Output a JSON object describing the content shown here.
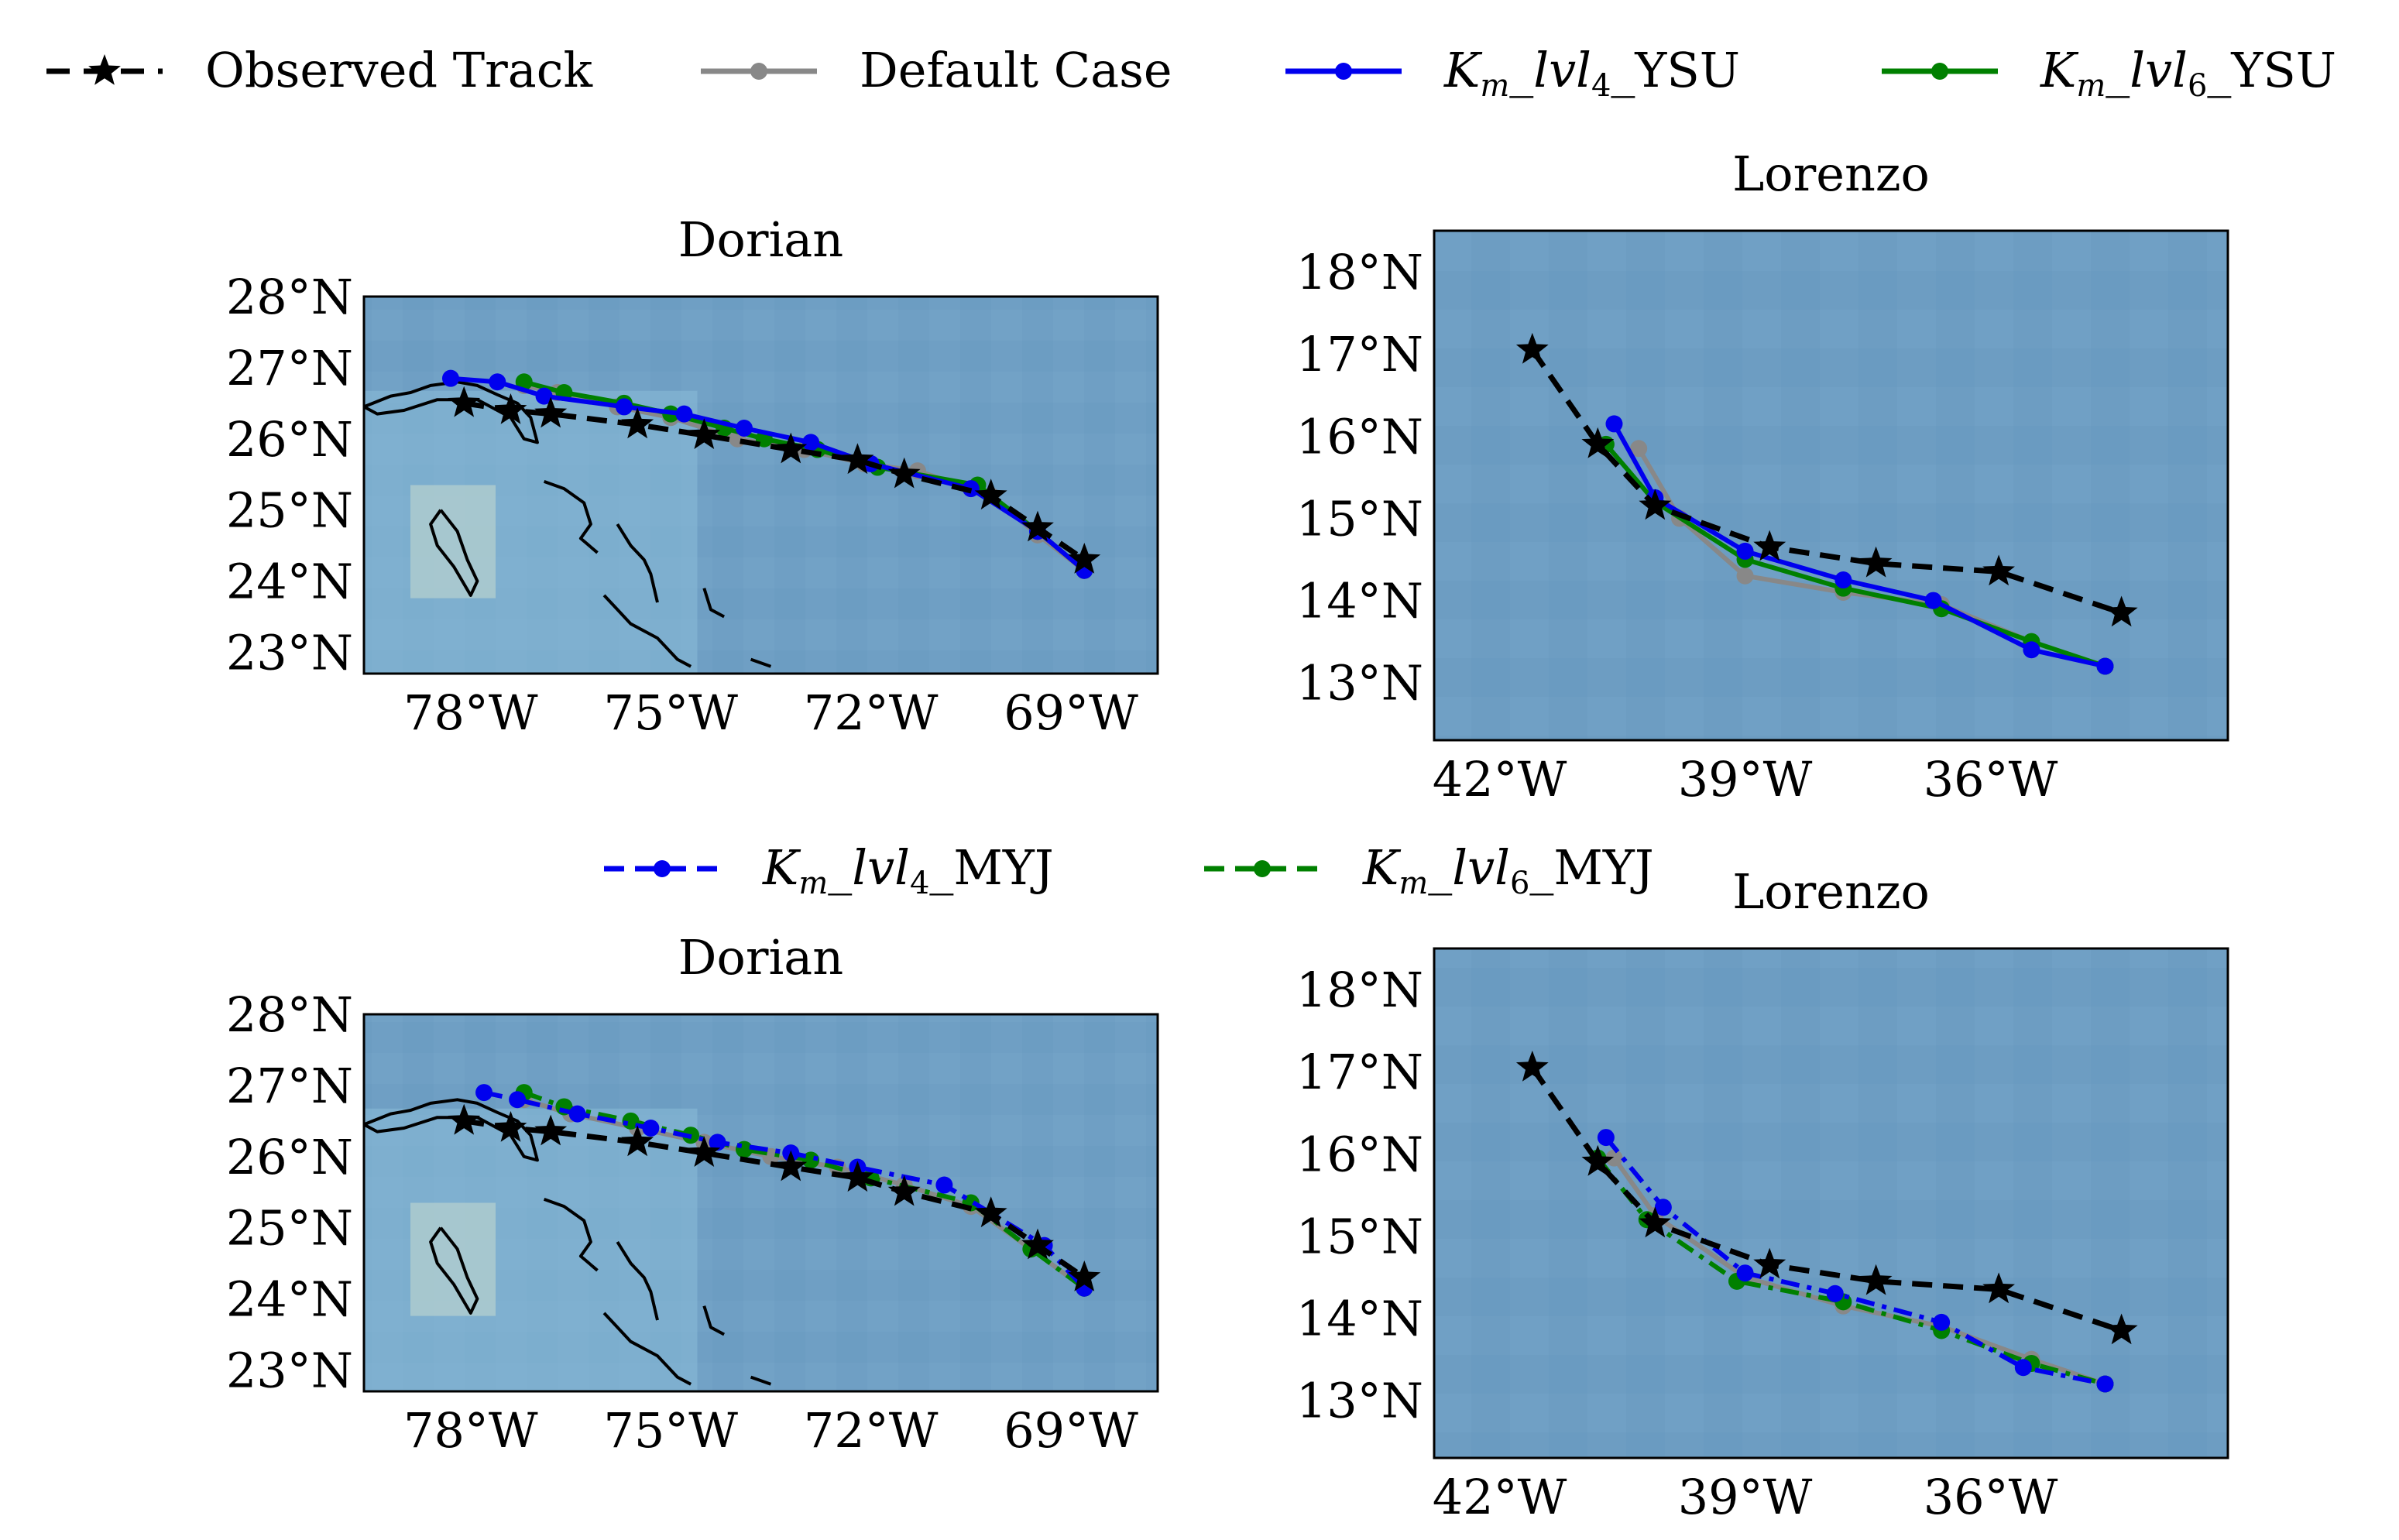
{
  "legend_top": [
    {
      "label": "Observed Track",
      "color": "#000000",
      "marker": "star",
      "dash": true
    },
    {
      "label": "Default Case",
      "color": "#888888",
      "marker": "circle",
      "dash": false
    },
    {
      "label_parts": [
        "K",
        "m",
        "_lvl",
        "4",
        "_YSU"
      ],
      "color": "#0000ee",
      "marker": "circle",
      "dash": false
    },
    {
      "label_parts": [
        "K",
        "m",
        "_lvl",
        "6",
        "_YSU"
      ],
      "color": "#008000",
      "marker": "circle",
      "dash": false
    }
  ],
  "legend_mid": [
    {
      "label_parts": [
        "K",
        "m",
        "_lvl",
        "4",
        "_MYJ"
      ],
      "color": "#0000ee",
      "marker": "circle",
      "dash": true
    },
    {
      "label_parts": [
        "K",
        "m",
        "_lvl",
        "6",
        "_MYJ"
      ],
      "color": "#008000",
      "marker": "circle",
      "dash": true
    }
  ],
  "maps": [
    {
      "title": "Dorian",
      "lon_range": [
        -79.6,
        -67.7
      ],
      "lat_range": [
        22.7,
        28.0
      ],
      "lon_ticks": [
        -78,
        -75,
        -72,
        -69
      ],
      "lon_labels": [
        "78°W",
        "75°W",
        "72°W",
        "69°W"
      ],
      "lat_ticks": [
        23,
        24,
        25,
        26,
        27,
        28
      ],
      "lat_labels": [
        "23°N",
        "24°N",
        "25°N",
        "26°N",
        "27°N",
        "28°N"
      ],
      "tracks": [
        {
          "name": "Default Case",
          "color": "#888888",
          "style": "solid",
          "marker": "circle",
          "lon": [
            -77.2,
            -76.7,
            -75.8,
            -75.0,
            -74.0,
            -73.0,
            -72.1,
            -71.3,
            -70.2,
            -69.5,
            -68.8
          ],
          "lat": [
            26.75,
            26.65,
            26.45,
            26.3,
            26.0,
            25.85,
            25.65,
            25.55,
            25.2,
            24.65,
            24.15
          ]
        },
        {
          "name": "Km_lvl6_YSU",
          "color": "#008000",
          "style": "solid",
          "marker": "circle",
          "lon": [
            -77.2,
            -76.6,
            -75.7,
            -75.0,
            -74.2,
            -73.6,
            -72.8,
            -71.9,
            -70.4,
            -69.5,
            -68.8
          ],
          "lat": [
            26.8,
            26.65,
            26.5,
            26.35,
            26.15,
            26.0,
            25.85,
            25.6,
            25.35,
            24.7,
            24.15
          ]
        },
        {
          "name": "Km_lvl4_YSU",
          "color": "#0000ee",
          "style": "solid",
          "marker": "circle",
          "lon": [
            -78.3,
            -77.6,
            -76.9,
            -75.7,
            -74.8,
            -73.9,
            -72.9,
            -72.0,
            -70.5,
            -69.5,
            -68.8
          ],
          "lat": [
            26.85,
            26.8,
            26.6,
            26.45,
            26.35,
            26.15,
            25.95,
            25.65,
            25.3,
            24.7,
            24.15
          ]
        },
        {
          "name": "Observed Track",
          "color": "#000000",
          "style": "dashed",
          "marker": "star",
          "lon": [
            -78.1,
            -77.4,
            -76.8,
            -75.5,
            -74.5,
            -73.2,
            -72.2,
            -71.5,
            -70.2,
            -69.5,
            -68.8
          ],
          "lat": [
            26.5,
            26.4,
            26.35,
            26.2,
            26.05,
            25.85,
            25.7,
            25.5,
            25.2,
            24.75,
            24.3
          ]
        }
      ]
    },
    {
      "title": "Lorenzo",
      "lon_range": [
        -42.8,
        -33.1
      ],
      "lat_range": [
        12.3,
        18.5
      ],
      "lon_ticks": [
        -42,
        -39,
        -36
      ],
      "lon_labels": [
        "42°W",
        "39°W",
        "36°W"
      ],
      "lat_ticks": [
        13,
        14,
        15,
        16,
        17,
        18
      ],
      "lat_labels": [
        "13°N",
        "14°N",
        "15°N",
        "16°N",
        "17°N",
        "18°N"
      ],
      "tracks": [
        {
          "name": "Default Case",
          "color": "#888888",
          "style": "solid",
          "marker": "circle",
          "lon": [
            -40.3,
            -39.8,
            -39.0,
            -37.8,
            -36.6,
            -35.5,
            -34.6
          ],
          "lat": [
            15.85,
            15.0,
            14.3,
            14.1,
            13.95,
            13.5,
            13.2
          ]
        },
        {
          "name": "Km_lvl6_YSU",
          "color": "#008000",
          "style": "solid",
          "marker": "circle",
          "lon": [
            -40.7,
            -40.1,
            -39.0,
            -37.8,
            -36.6,
            -35.5,
            -34.6
          ],
          "lat": [
            15.9,
            15.2,
            14.5,
            14.15,
            13.9,
            13.5,
            13.2
          ]
        },
        {
          "name": "Km_lvl4_YSU",
          "color": "#0000ee",
          "style": "solid",
          "marker": "circle",
          "lon": [
            -40.6,
            -40.1,
            -39.0,
            -37.8,
            -36.7,
            -35.5,
            -34.6
          ],
          "lat": [
            16.15,
            15.25,
            14.6,
            14.25,
            14.0,
            13.4,
            13.2
          ]
        },
        {
          "name": "Observed Track",
          "color": "#000000",
          "style": "dashed",
          "marker": "star",
          "lon": [
            -41.6,
            -40.8,
            -40.1,
            -38.7,
            -37.4,
            -35.9,
            -34.4
          ],
          "lat": [
            17.05,
            15.9,
            15.15,
            14.65,
            14.45,
            14.35,
            13.85
          ]
        }
      ]
    },
    {
      "title": "Dorian",
      "lon_range": [
        -79.6,
        -67.7
      ],
      "lat_range": [
        22.7,
        28.0
      ],
      "lon_ticks": [
        -78,
        -75,
        -72,
        -69
      ],
      "lon_labels": [
        "78°W",
        "75°W",
        "72°W",
        "69°W"
      ],
      "lat_ticks": [
        23,
        24,
        25,
        26,
        27,
        28
      ],
      "lat_labels": [
        "23°N",
        "24°N",
        "25°N",
        "26°N",
        "27°N",
        "28°N"
      ],
      "tracks": [
        {
          "name": "Default Case",
          "color": "#888888",
          "style": "solid",
          "marker": "circle",
          "lon": [
            -77.2,
            -76.5,
            -75.5,
            -74.5,
            -73.5,
            -72.5,
            -71.5,
            -70.5,
            -69.6,
            -68.8
          ],
          "lat": [
            26.8,
            26.6,
            26.4,
            26.2,
            26.0,
            25.85,
            25.6,
            25.3,
            24.7,
            24.15
          ]
        },
        {
          "name": "Km_lvl6_MYJ",
          "color": "#008000",
          "style": "dashdot",
          "marker": "circle",
          "lon": [
            -77.2,
            -76.6,
            -75.6,
            -74.7,
            -73.9,
            -72.9,
            -72.0,
            -70.5,
            -69.6,
            -68.8
          ],
          "lat": [
            26.9,
            26.7,
            26.5,
            26.3,
            26.1,
            25.95,
            25.7,
            25.35,
            24.7,
            24.15
          ]
        },
        {
          "name": "Km_lvl4_MYJ",
          "color": "#0000ee",
          "style": "dashdot",
          "marker": "circle",
          "lon": [
            -77.8,
            -77.3,
            -76.4,
            -75.3,
            -74.3,
            -73.2,
            -72.2,
            -70.9,
            -69.4,
            -68.8
          ],
          "lat": [
            26.9,
            26.8,
            26.6,
            26.4,
            26.2,
            26.05,
            25.85,
            25.6,
            24.75,
            24.15
          ]
        },
        {
          "name": "Observed Track",
          "color": "#000000",
          "style": "dashed",
          "marker": "star",
          "lon": [
            -78.1,
            -77.4,
            -76.8,
            -75.5,
            -74.5,
            -73.2,
            -72.2,
            -71.5,
            -70.2,
            -69.5,
            -68.8
          ],
          "lat": [
            26.5,
            26.4,
            26.35,
            26.2,
            26.05,
            25.85,
            25.7,
            25.5,
            25.2,
            24.75,
            24.3
          ]
        }
      ]
    },
    {
      "title": "Lorenzo",
      "lon_range": [
        -42.8,
        -33.1
      ],
      "lat_range": [
        12.3,
        18.5
      ],
      "lon_ticks": [
        -42,
        -39,
        -36
      ],
      "lon_labels": [
        "42°W",
        "39°W",
        "36°W"
      ],
      "lat_ticks": [
        13,
        14,
        15,
        16,
        17,
        18
      ],
      "lat_labels": [
        "13°N",
        "14°N",
        "15°N",
        "16°N",
        "17°N",
        "18°N"
      ],
      "tracks": [
        {
          "name": "Default Case",
          "color": "#888888",
          "style": "solid",
          "marker": "circle",
          "lon": [
            -40.6,
            -40.1,
            -39.0,
            -37.8,
            -36.6,
            -35.5,
            -34.6
          ],
          "lat": [
            15.95,
            15.25,
            14.5,
            14.15,
            13.9,
            13.5,
            13.2
          ]
        },
        {
          "name": "Km_lvl6_MYJ",
          "color": "#008000",
          "style": "dashdot",
          "marker": "circle",
          "lon": [
            -40.8,
            -40.2,
            -39.1,
            -37.8,
            -36.6,
            -35.5,
            -34.6
          ],
          "lat": [
            15.95,
            15.2,
            14.45,
            14.2,
            13.85,
            13.45,
            13.2
          ]
        },
        {
          "name": "Km_lvl4_MYJ",
          "color": "#0000ee",
          "style": "dashdot",
          "marker": "circle",
          "lon": [
            -40.7,
            -40.0,
            -39.0,
            -37.9,
            -36.6,
            -35.6,
            -34.6
          ],
          "lat": [
            16.2,
            15.35,
            14.55,
            14.3,
            13.95,
            13.4,
            13.2
          ]
        },
        {
          "name": "Observed Track",
          "color": "#000000",
          "style": "dashed",
          "marker": "star",
          "lon": [
            -41.6,
            -40.8,
            -40.1,
            -38.7,
            -37.4,
            -35.9,
            -34.4
          ],
          "lat": [
            17.05,
            15.9,
            15.15,
            14.65,
            14.45,
            14.35,
            13.85
          ]
        }
      ]
    }
  ]
}
